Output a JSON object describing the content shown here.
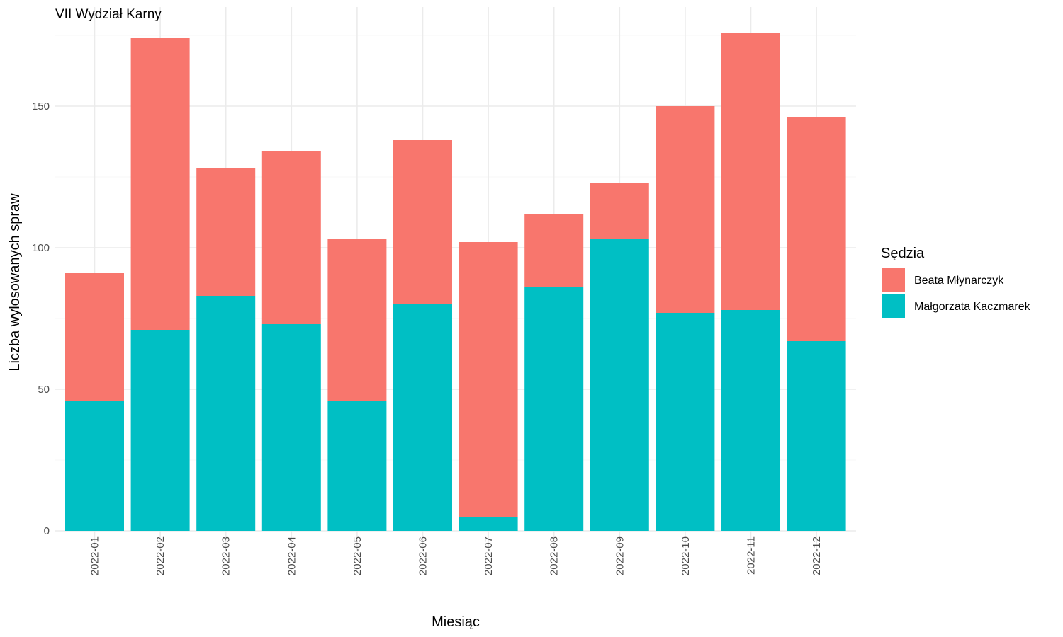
{
  "chart_data": {
    "type": "bar",
    "stacked": true,
    "title": "VII Wydział Karny",
    "xlabel": "Miesiąc",
    "ylabel": "Liczba wylosowanych spraw",
    "ylim": [
      0,
      180
    ],
    "yticks": [
      0,
      50,
      100,
      150
    ],
    "grid": true,
    "legend": {
      "title": "Sędzia",
      "position": "right"
    },
    "categories": [
      "2022-01",
      "2022-02",
      "2022-03",
      "2022-04",
      "2022-05",
      "2022-06",
      "2022-07",
      "2022-08",
      "2022-09",
      "2022-10",
      "2022-11",
      "2022-12"
    ],
    "series": [
      {
        "name": "Małgorzata Kaczmarek",
        "color": "#00BFC4",
        "values": [
          46,
          71,
          83,
          73,
          46,
          80,
          5,
          86,
          103,
          77,
          78,
          67
        ]
      },
      {
        "name": "Beata Młynarczyk",
        "color": "#F8766D",
        "values": [
          45,
          103,
          45,
          61,
          57,
          58,
          97,
          26,
          20,
          73,
          98,
          79
        ]
      }
    ]
  }
}
